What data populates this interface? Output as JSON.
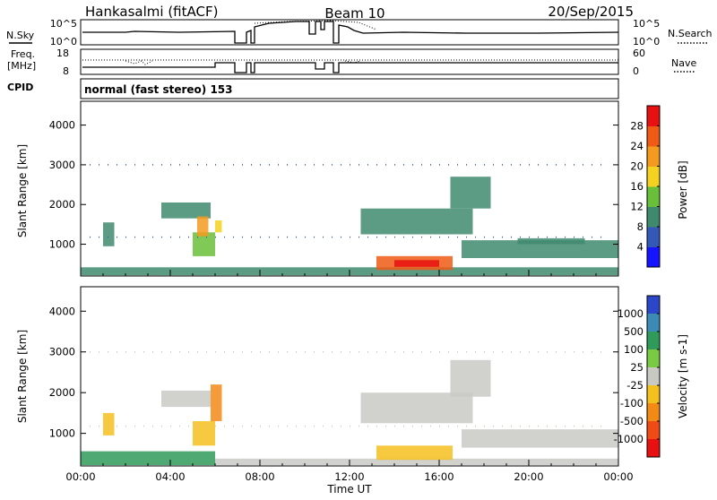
{
  "header": {
    "station": "Hankasalmi (fitACF)",
    "beam": "Beam 10",
    "date": "20/Sep/2015"
  },
  "summary": {
    "nsky_label": "N.Sky",
    "nsky_ticks": [
      "10^5",
      "10^0"
    ],
    "nsearch_label": "N.Search",
    "nsearch_ticks": [
      "10^5",
      "10^0"
    ],
    "freq_label_1": "Freq.",
    "freq_label_2": "[MHz]",
    "freq_ticks": [
      "18",
      "8"
    ],
    "nave_label": "Nave",
    "nave_ticks": [
      "60",
      "0"
    ],
    "cpid_label": "CPID",
    "cpid_value": "normal (fast stereo) 153"
  },
  "chart_data": [
    {
      "type": "heatmap",
      "title": "",
      "xlabel": "",
      "ylabel": "Slant Range [km]",
      "ylim": [
        200,
        4600
      ],
      "yticks": [
        "1000",
        "2000",
        "3000",
        "4000"
      ],
      "xlim": [
        0,
        24
      ],
      "colorbar_label": "Power [dB]",
      "colorbar_ticks": [
        "4",
        "8",
        "12",
        "16",
        "20",
        "24",
        "28"
      ],
      "colorbar_colors": [
        "#1414ff",
        "#3458b8",
        "#3f8a6e",
        "#6abf3a",
        "#f4d21f",
        "#f49a1e",
        "#f05a14",
        "#e81010"
      ],
      "regions": [
        {
          "t": [
            0.0,
            24.0
          ],
          "r": [
            220,
            420
          ],
          "value": 8
        },
        {
          "t": [
            1.0,
            1.5
          ],
          "r": [
            950,
            1550
          ],
          "value": 8
        },
        {
          "t": [
            3.6,
            5.8
          ],
          "r": [
            1650,
            2050
          ],
          "value": 10
        },
        {
          "t": [
            5.0,
            6.0
          ],
          "r": [
            700,
            1300
          ],
          "value": 12
        },
        {
          "t": [
            5.2,
            5.7
          ],
          "r": [
            1200,
            1700
          ],
          "value": 20
        },
        {
          "t": [
            6.0,
            6.3
          ],
          "r": [
            1300,
            1600
          ],
          "value": 16
        },
        {
          "t": [
            12.5,
            17.5
          ],
          "r": [
            1250,
            1900
          ],
          "value": 10
        },
        {
          "t": [
            16.5,
            18.3
          ],
          "r": [
            1900,
            2700
          ],
          "value": 8
        },
        {
          "t": [
            13.2,
            16.6
          ],
          "r": [
            350,
            700
          ],
          "value": 24
        },
        {
          "t": [
            14.0,
            16.0
          ],
          "r": [
            430,
            600
          ],
          "value": 28
        },
        {
          "t": [
            17.0,
            24.0
          ],
          "r": [
            650,
            1100
          ],
          "value": 8
        },
        {
          "t": [
            19.5,
            22.5
          ],
          "r": [
            1000,
            1150
          ],
          "value": 8
        }
      ]
    },
    {
      "type": "heatmap",
      "title": "",
      "xlabel": "Time UT",
      "ylabel": "Slant Range [km]",
      "ylim": [
        200,
        4600
      ],
      "yticks": [
        "1000",
        "2000",
        "3000",
        "4000"
      ],
      "xlim": [
        0,
        24
      ],
      "xticks": [
        "00:00",
        "04:00",
        "08:00",
        "12:00",
        "16:00",
        "20:00",
        "00:00"
      ],
      "colorbar_label": "Velocity [m s-1]",
      "colorbar_ticks": [
        "1000",
        "500",
        "100",
        "25",
        "-25",
        "-100",
        "-500",
        "-1000"
      ],
      "colorbar_colors": [
        "#2b47c9",
        "#3b8bb5",
        "#2f9a5a",
        "#7ac943",
        "#c9c9c4",
        "#f4c01e",
        "#f48a16",
        "#f04b14",
        "#e81010"
      ],
      "regions": [
        {
          "t": [
            0.0,
            6.0
          ],
          "r": [
            220,
            560
          ],
          "value": 100
        },
        {
          "t": [
            6.0,
            24.0
          ],
          "r": [
            220,
            380
          ],
          "value": 0
        },
        {
          "t": [
            3.6,
            5.8
          ],
          "r": [
            1650,
            2050
          ],
          "value": 0
        },
        {
          "t": [
            5.0,
            6.0
          ],
          "r": [
            700,
            1300
          ],
          "value": -100
        },
        {
          "t": [
            5.8,
            6.3
          ],
          "r": [
            1300,
            2200
          ],
          "value": -500
        },
        {
          "t": [
            1.0,
            1.5
          ],
          "r": [
            950,
            1500
          ],
          "value": -100
        },
        {
          "t": [
            12.5,
            17.5
          ],
          "r": [
            1250,
            2000
          ],
          "value": 0
        },
        {
          "t": [
            16.5,
            18.3
          ],
          "r": [
            1900,
            2800
          ],
          "value": 0
        },
        {
          "t": [
            13.2,
            16.6
          ],
          "r": [
            350,
            700
          ],
          "value": -100
        },
        {
          "t": [
            17.0,
            24.0
          ],
          "r": [
            650,
            1100
          ],
          "value": 0
        }
      ]
    }
  ]
}
